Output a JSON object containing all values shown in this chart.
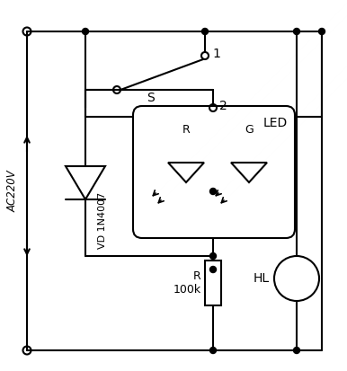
{
  "bg_color": "#ffffff",
  "figsize": [
    3.86,
    4.13
  ],
  "dpi": 100,
  "ac_label": "AC220V",
  "vd_label": "VD 1N4007",
  "r_label": "R\n100k",
  "hl_label": "HL",
  "s_label": "S",
  "led_label": "LED",
  "num1_label": "1",
  "num2_label": "2",
  "r_led_label": "R",
  "g_led_label": "G"
}
